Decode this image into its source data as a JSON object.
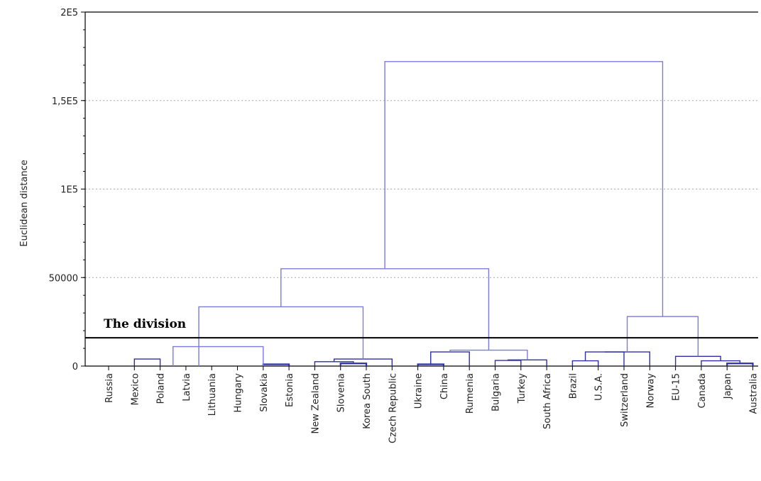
{
  "chart_data": {
    "type": "dendrogram",
    "ylabel": "Euclidean distance",
    "ylim": [
      0,
      200000
    ],
    "yticks": [
      {
        "value": 0,
        "label": "0"
      },
      {
        "value": 50000,
        "label": "50000"
      },
      {
        "value": 100000,
        "label": "1E5"
      },
      {
        "value": 150000,
        "label": "1,5E5"
      },
      {
        "value": 200000,
        "label": "2E5"
      }
    ],
    "grid": "horizontal-dotted",
    "leaves": [
      "Russia",
      "Mexico",
      "Poland",
      "Latvia",
      "Lithuania",
      "Hungary",
      "Slovakia",
      "Estonia",
      "New Zealand",
      "Slovenia",
      "Korea South",
      "Czech Republic",
      "Ukraine",
      "China",
      "Rumenia",
      "Bulgaria",
      "Turkey",
      "South Africa",
      "Brazil",
      "U.S.A.",
      "Switzerland",
      "Norway",
      "EU-15",
      "Canada",
      "Japan",
      "Australia"
    ],
    "merges": [
      {
        "left": "Slovakia",
        "right": "Estonia",
        "height": 1000
      },
      {
        "left": "Ukraine",
        "right": "China",
        "height": 1000
      },
      {
        "left": "Japan",
        "right": "Australia",
        "height": 1500
      },
      {
        "left": "Slovenia",
        "right": "Korea South",
        "height": 1500
      },
      {
        "left": "Brazil",
        "right": "U.S.A.",
        "height": 3000
      },
      {
        "left": "Canada",
        "right": [
          "Japan",
          "Australia"
        ],
        "height": 3000
      },
      {
        "left": "Bulgaria",
        "right": "Turkey",
        "height": 3200
      },
      {
        "left": "New Zealand",
        "right": [
          "Slovenia",
          "Korea South"
        ],
        "height": 2500
      },
      {
        "left": "Mexico",
        "right": "Poland",
        "height": 4000
      },
      {
        "left": [
          "New Zealand",
          "Slovenia",
          "Korea South"
        ],
        "right": "Czech Republic",
        "height": 4000
      },
      {
        "left": "EU-15",
        "right": [
          "Canada",
          "Japan",
          "Australia"
        ],
        "height": 5500
      },
      {
        "left": [
          "Ukraine",
          "China"
        ],
        "right": "Rumenia",
        "height": 8000
      },
      {
        "left": [
          "Bulgaria",
          "Turkey"
        ],
        "right": "South Africa",
        "height": 3500
      },
      {
        "left": [
          "Brazil",
          "U.S.A."
        ],
        "right": "Switzerland",
        "height": 8000
      },
      {
        "left": [
          "Brazil",
          "U.S.A.",
          "Switzerland"
        ],
        "right": "Norway",
        "height": 8000
      },
      {
        "left": [
          "Ukraine",
          "China",
          "Rumenia"
        ],
        "right": [
          "Bulgaria",
          "Turkey",
          "South Africa"
        ],
        "height": 9000
      },
      {
        "left": [
          "Mexico",
          "Poland",
          "Latvia",
          "Lithuania"
        ],
        "right": [
          "Hungary",
          "Slovakia",
          "Estonia"
        ],
        "height": 11000
      },
      {
        "left": [
          "Brazil",
          "U.S.A.",
          "Switzerland",
          "Norway"
        ],
        "right": [
          "EU-15",
          "Canada",
          "Japan",
          "Australia"
        ],
        "height": 28000
      },
      {
        "left": [
          "Russia",
          "Mexico",
          "Poland",
          "Latvia",
          "Lithuania",
          "Hungary",
          "Slovakia",
          "Estonia"
        ],
        "right": [
          "New Zealand",
          "Slovenia",
          "Korea South",
          "Czech Republic"
        ],
        "height": 33500
      },
      {
        "left": [
          "Russia",
          "Mexico",
          "Poland",
          "Latvia",
          "Lithuania",
          "Hungary",
          "Slovakia",
          "Estonia",
          "New Zealand",
          "Slovenia",
          "Korea South",
          "Czech Republic"
        ],
        "right": [
          "Ukraine",
          "China",
          "Rumenia",
          "Bulgaria",
          "Turkey",
          "South Africa"
        ],
        "height": 55000
      },
      {
        "left": [
          "Russia",
          "Mexico",
          "Poland",
          "Latvia",
          "Lithuania",
          "Hungary",
          "Slovakia",
          "Estonia",
          "New Zealand",
          "Slovenia",
          "Korea South",
          "Czech Republic",
          "Ukraine",
          "China",
          "Rumenia",
          "Bulgaria",
          "Turkey",
          "South Africa"
        ],
        "right": [
          "Brazil",
          "U.S.A.",
          "Switzerland",
          "Norway",
          "EU-15",
          "Canada",
          "Japan",
          "Australia"
        ],
        "height": 172000
      }
    ],
    "annotations": [
      {
        "text": "The division",
        "y": 16000
      }
    ],
    "colors": {
      "branch_low": "#2f2fa8",
      "branch_high": "#7b7bdc",
      "grid": "#a8a8a8",
      "division_line": "#000000"
    }
  }
}
